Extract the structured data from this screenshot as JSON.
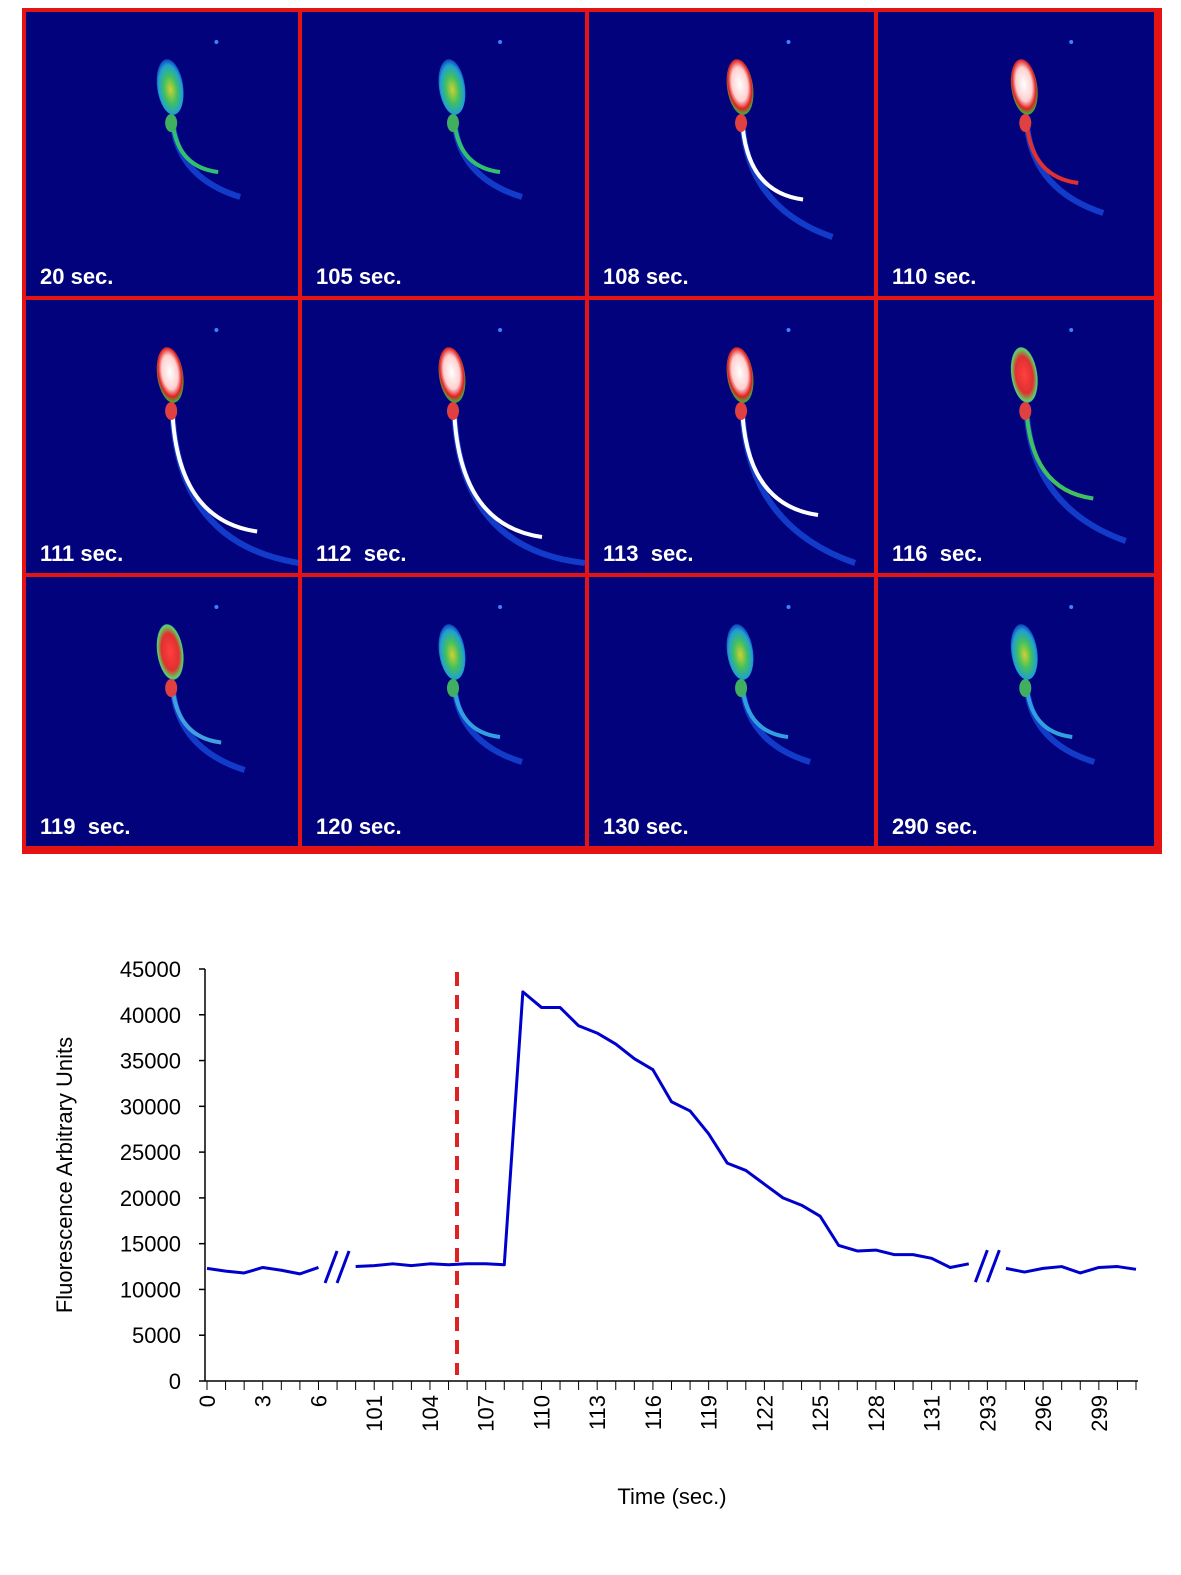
{
  "panels": [
    {
      "label": "20 sec."
    },
    {
      "label": "105 sec."
    },
    {
      "label": "108 sec."
    },
    {
      "label": "110 sec."
    },
    {
      "label": "111 sec."
    },
    {
      "label": "112  sec."
    },
    {
      "label": "113  sec."
    },
    {
      "label": "116  sec."
    },
    {
      "label": "119  sec."
    },
    {
      "label": "120 sec."
    },
    {
      "label": "130 sec."
    },
    {
      "label": "290 sec."
    }
  ],
  "chart_data": {
    "type": "line",
    "y_label": "Fluorescence Arbitrary Units",
    "x_label": "Time (sec.)",
    "categories": [
      "0",
      null,
      null,
      "3",
      null,
      null,
      "6",
      null,
      null,
      "101",
      null,
      null,
      "104",
      null,
      null,
      "107",
      null,
      null,
      "110",
      null,
      null,
      "113",
      null,
      null,
      "116",
      null,
      null,
      "119",
      null,
      null,
      "122",
      null,
      null,
      "125",
      null,
      null,
      "128",
      null,
      null,
      "131",
      null,
      null,
      "293",
      null,
      null,
      "296",
      null,
      null,
      "299",
      null,
      null
    ],
    "series": [
      {
        "color": "#0000cc",
        "values": [
          12300,
          12000,
          11800,
          12400,
          12100,
          11700,
          12400,
          null,
          12500,
          12600,
          12800,
          12600,
          12800,
          12700,
          12800,
          12800,
          12700,
          42500,
          40800,
          40800,
          38800,
          38000,
          36800,
          35200,
          34000,
          30500,
          29500,
          27000,
          23800,
          23000,
          21500,
          20000,
          19200,
          18000,
          14800,
          14200,
          14300,
          13800,
          13800,
          13400,
          12400,
          12800,
          null,
          12300,
          11900,
          12300,
          12500,
          11800,
          12400,
          12500,
          12200
        ]
      }
    ],
    "ylim": [
      0,
      45000
    ],
    "yticks": [
      0,
      5000,
      10000,
      15000,
      20000,
      25000,
      30000,
      35000,
      40000,
      45000
    ]
  }
}
